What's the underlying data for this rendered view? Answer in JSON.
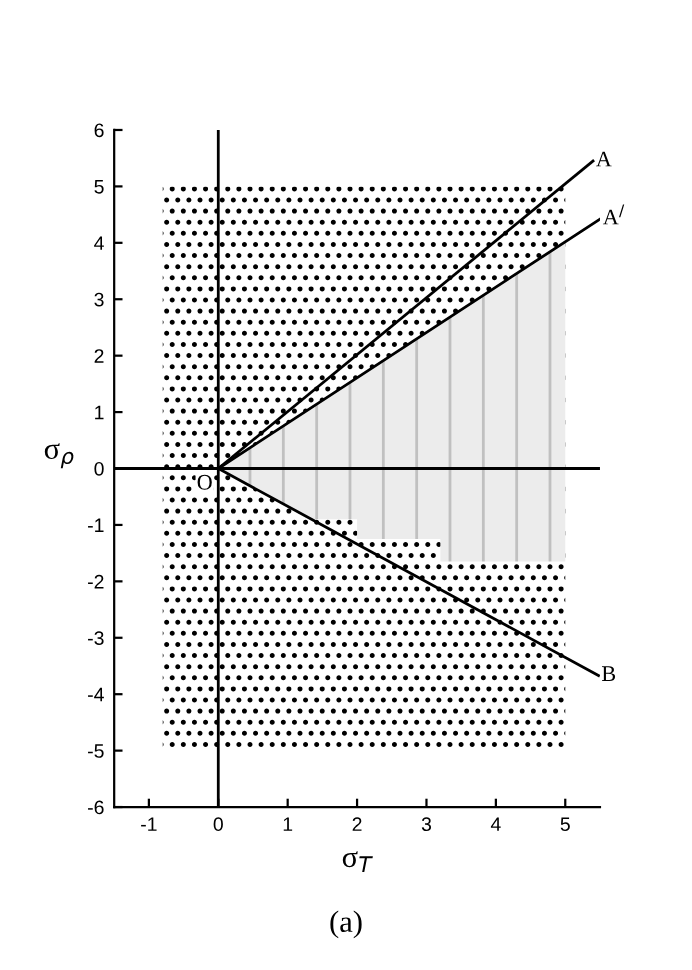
{
  "chart_data": {
    "type": "line",
    "xlabel": "σ$_{T}$",
    "ylabel": "σ$_{ρ}$",
    "xlim": [
      -1.5,
      5.5
    ],
    "ylim": [
      -6,
      6
    ],
    "xticks": [
      -1,
      0,
      1,
      2,
      3,
      4,
      5
    ],
    "yticks": [
      -6,
      -5,
      -4,
      -3,
      -2,
      -1,
      0,
      1,
      2,
      3,
      4,
      5,
      6
    ],
    "grid": false,
    "legend": false,
    "series": [
      {
        "type": "area",
        "color": "#000000",
        "x": [
          -0.8,
          5
        ],
        "values": [
          5,
          5
        ]
      },
      {
        "type": "area",
        "color": "#000000",
        "x": [
          -0.8,
          5
        ],
        "values": [
          -5,
          -5
        ]
      },
      {
        "type": "area",
        "color": "#c0c0c0",
        "x": [
          0,
          5
        ],
        "values": [
          0,
          4
        ]
      },
      {
        "type": "area",
        "color": "#c0c0c0",
        "x": [
          0,
          1.3,
          1.3,
          2.0,
          2.0,
          3.2,
          3.2,
          5
        ],
        "values": [
          0,
          -0.87,
          -0.9,
          -0.9,
          -1.25,
          -1.25,
          -1.65,
          -1.65
        ]
      },
      {
        "color": "#000000",
        "x": [
          0,
          5.4
        ],
        "values": [
          0,
          5.45
        ]
      },
      {
        "color": "#000000",
        "x": [
          0,
          5.5
        ],
        "values": [
          0,
          4.42
        ]
      },
      {
        "color": "#000000",
        "x": [
          0,
          5.48
        ],
        "values": [
          0,
          -3.67
        ]
      },
      {
        "color": "#000000",
        "x": [
          0,
          0,
          0
        ],
        "values": [
          -6,
          0,
          6
        ]
      },
      {
        "color": "#000000",
        "x": [
          -1.5,
          5.5
        ],
        "values": [
          0,
          0
        ]
      }
    ],
    "annotations": [
      {
        "text": "A",
        "x": 5.4,
        "y": 5.45
      },
      {
        "text": "A$^{/}$",
        "x": 5.5,
        "y": 4.42
      },
      {
        "text": "B",
        "x": 5.48,
        "y": -3.67
      },
      {
        "text": "O",
        "x": 0,
        "y": 0
      },
      "(a)"
    ]
  }
}
